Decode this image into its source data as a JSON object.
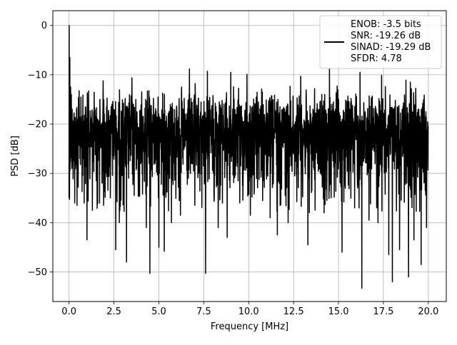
{
  "chart_data": {
    "type": "line",
    "title": "",
    "xlabel": "Frequency [MHz]",
    "ylabel": "PSD [dB]",
    "xlim": [
      -0.9,
      21.0
    ],
    "ylim": [
      -56,
      3
    ],
    "grid": true,
    "legend_position": "top-right",
    "x_ticks": [
      0.0,
      2.5,
      5.0,
      7.5,
      10.0,
      12.5,
      15.0,
      17.5,
      20.0
    ],
    "x_tick_labels": [
      "0.0",
      "2.5",
      "5.0",
      "7.5",
      "10.0",
      "12.5",
      "15.0",
      "17.5",
      "20.0"
    ],
    "y_ticks": [
      0,
      -10,
      -20,
      -30,
      -40,
      -50
    ],
    "y_tick_labels": [
      "0",
      "−10",
      "−20",
      "−30",
      "−40",
      "−50"
    ],
    "series": [
      {
        "legend_lines": [
          "ENOB: -3.5 bits",
          "SNR: -19.26 dB",
          "SINAD: -19.29 dB",
          "SFDR: 4.78"
        ],
        "color": "#000000",
        "x_start": 0,
        "x_end": 20,
        "noise_floor_median": -22,
        "noise_peak_max": -8.7,
        "noise_min": -53.3,
        "peaks": [
          {
            "x": 0.0,
            "y": 0.0
          },
          {
            "x": 0.04,
            "y": -6.5
          },
          {
            "x": 0.08,
            "y": -12.5
          },
          {
            "x": 0.12,
            "y": -14.0
          }
        ],
        "dips": [
          {
            "x": 0.0,
            "y": -35.0
          },
          {
            "x": 0.45,
            "y": -36.5
          },
          {
            "x": 1.0,
            "y": -43.5
          },
          {
            "x": 1.3,
            "y": -37.5
          },
          {
            "x": 1.7,
            "y": -36.0
          },
          {
            "x": 2.3,
            "y": -35.0
          },
          {
            "x": 2.6,
            "y": -45.5
          },
          {
            "x": 2.8,
            "y": -40.0
          },
          {
            "x": 3.2,
            "y": -48.0
          },
          {
            "x": 3.5,
            "y": -38.0
          },
          {
            "x": 4.5,
            "y": -50.3
          },
          {
            "x": 4.3,
            "y": -41.0
          },
          {
            "x": 5.0,
            "y": -45.0
          },
          {
            "x": 5.3,
            "y": -45.8
          },
          {
            "x": 5.7,
            "y": -40.0
          },
          {
            "x": 6.2,
            "y": -38.5
          },
          {
            "x": 7.0,
            "y": -36.5
          },
          {
            "x": 7.6,
            "y": -50.3
          },
          {
            "x": 8.3,
            "y": -41.0
          },
          {
            "x": 8.8,
            "y": -43.0
          },
          {
            "x": 9.5,
            "y": -36.0
          },
          {
            "x": 10.1,
            "y": -38.5
          },
          {
            "x": 11.2,
            "y": -39.0
          },
          {
            "x": 11.6,
            "y": -42.5
          },
          {
            "x": 12.2,
            "y": -40.0
          },
          {
            "x": 13.3,
            "y": -44.5
          },
          {
            "x": 14.2,
            "y": -38.0
          },
          {
            "x": 14.5,
            "y": -40.0
          },
          {
            "x": 15.2,
            "y": -46.0
          },
          {
            "x": 15.9,
            "y": -37.0
          },
          {
            "x": 16.3,
            "y": -53.3
          },
          {
            "x": 16.7,
            "y": -39.5
          },
          {
            "x": 17.2,
            "y": -40.0
          },
          {
            "x": 17.8,
            "y": -46.5
          },
          {
            "x": 18.0,
            "y": -52.0
          },
          {
            "x": 18.4,
            "y": -45.5
          },
          {
            "x": 18.9,
            "y": -51.0
          },
          {
            "x": 19.2,
            "y": -43.5
          },
          {
            "x": 19.6,
            "y": -48.5
          },
          {
            "x": 19.9,
            "y": -41.0
          }
        ],
        "tops": [
          {
            "x": 6.7,
            "y": -8.8
          },
          {
            "x": 7.7,
            "y": -9.3
          },
          {
            "x": 9.0,
            "y": -9.5
          },
          {
            "x": 9.9,
            "y": -9.9
          },
          {
            "x": 14.5,
            "y": -8.7
          },
          {
            "x": 16.2,
            "y": -9.5
          },
          {
            "x": 17.4,
            "y": -10.1
          },
          {
            "x": 3.5,
            "y": -10.6
          },
          {
            "x": 1.9,
            "y": -11.2
          },
          {
            "x": 12.9,
            "y": -10.3
          },
          {
            "x": 19.0,
            "y": -11.5
          }
        ]
      }
    ]
  }
}
